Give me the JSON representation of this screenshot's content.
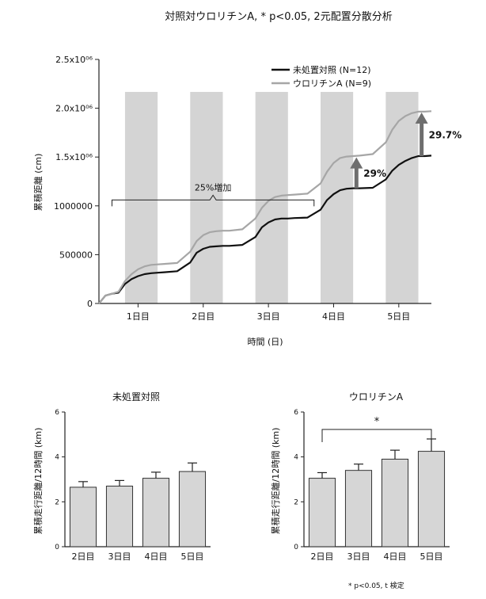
{
  "page_title": "対照対ウロリチンA, * p<0.05, 2元配置分散分析",
  "chart_data": [
    {
      "type": "line",
      "title": "対照対ウロリチンA, * p<0.05, 2元配置分散分析",
      "xlabel": "時間 (日)",
      "ylabel": "累積距離 (cm)",
      "ylim": [
        0,
        2500000
      ],
      "xlim": [
        0,
        5.1
      ],
      "y_ticks": [
        {
          "value": 0,
          "label": "0"
        },
        {
          "value": 500000,
          "label": "500000"
        },
        {
          "value": 1000000,
          "label": "1000000"
        },
        {
          "value": 1500000,
          "label": "1.5x10⁰⁶"
        },
        {
          "value": 2000000,
          "label": "2.0x10⁰⁶"
        },
        {
          "value": 2500000,
          "label": "2.5x10⁰⁶"
        }
      ],
      "x_ticks": [
        {
          "value": 0.6,
          "label": "1日目"
        },
        {
          "value": 1.6,
          "label": "2日目"
        },
        {
          "value": 2.6,
          "label": "3日目"
        },
        {
          "value": 3.6,
          "label": "4日目"
        },
        {
          "value": 4.6,
          "label": "5日目"
        }
      ],
      "dark_periods": [
        [
          0.4,
          0.9
        ],
        [
          1.4,
          1.9
        ],
        [
          2.4,
          2.9
        ],
        [
          3.4,
          3.9
        ],
        [
          4.4,
          4.9
        ]
      ],
      "legend_position": "top-right",
      "series": [
        {
          "name": "未処置対照 (N=12)",
          "color": "#111111",
          "x": [
            0,
            0.1,
            0.2,
            0.3,
            0.4,
            0.5,
            0.6,
            0.7,
            0.8,
            0.9,
            1.0,
            1.2,
            1.4,
            1.5,
            1.6,
            1.7,
            1.8,
            1.9,
            2.0,
            2.2,
            2.4,
            2.5,
            2.6,
            2.7,
            2.8,
            2.9,
            3.0,
            3.2,
            3.4,
            3.5,
            3.6,
            3.7,
            3.8,
            3.9,
            4.0,
            4.2,
            4.4,
            4.5,
            4.6,
            4.7,
            4.8,
            4.9,
            5.0,
            5.1
          ],
          "y": [
            0,
            80000,
            100000,
            110000,
            200000,
            250000,
            280000,
            300000,
            310000,
            315000,
            320000,
            330000,
            420000,
            520000,
            560000,
            580000,
            585000,
            590000,
            590000,
            600000,
            680000,
            780000,
            830000,
            860000,
            870000,
            870000,
            875000,
            880000,
            960000,
            1060000,
            1120000,
            1160000,
            1175000,
            1180000,
            1180000,
            1185000,
            1270000,
            1360000,
            1420000,
            1460000,
            1490000,
            1510000,
            1510000,
            1515000
          ]
        },
        {
          "name": "ウロリチンA (N=9)",
          "color": "#a6a6a6",
          "x": [
            0,
            0.1,
            0.2,
            0.3,
            0.4,
            0.5,
            0.6,
            0.7,
            0.8,
            0.9,
            1.0,
            1.2,
            1.4,
            1.5,
            1.6,
            1.7,
            1.8,
            1.9,
            2.0,
            2.2,
            2.4,
            2.5,
            2.6,
            2.7,
            2.8,
            2.9,
            3.0,
            3.2,
            3.4,
            3.5,
            3.6,
            3.7,
            3.8,
            3.9,
            4.0,
            4.2,
            4.4,
            4.5,
            4.6,
            4.7,
            4.8,
            4.9,
            5.0,
            5.1
          ],
          "y": [
            0,
            80000,
            100000,
            120000,
            230000,
            300000,
            350000,
            380000,
            395000,
            400000,
            405000,
            415000,
            530000,
            640000,
            700000,
            730000,
            740000,
            745000,
            745000,
            760000,
            870000,
            980000,
            1050000,
            1090000,
            1105000,
            1110000,
            1115000,
            1125000,
            1230000,
            1350000,
            1440000,
            1490000,
            1505000,
            1510000,
            1515000,
            1530000,
            1650000,
            1780000,
            1870000,
            1920000,
            1950000,
            1965000,
            1965000,
            1970000
          ]
        }
      ],
      "annotations": [
        {
          "text": "25%増加",
          "x_from": 0.2,
          "x_to": 3.3,
          "y": 1060000
        },
        {
          "text": "29%",
          "x": 3.95,
          "y_from": 1180000,
          "y_to": 1480000
        },
        {
          "text": "29.7%",
          "x": 4.95,
          "y_from": 1510000,
          "y_to": 1940000
        }
      ]
    },
    {
      "type": "bar",
      "title": "未処置対照",
      "ylabel": "累積走行距離/12時間 (km)",
      "ylim": [
        0,
        6
      ],
      "y_ticks": [
        0,
        2,
        4,
        6
      ],
      "categories": [
        "2日目",
        "3日目",
        "4日目",
        "5日目"
      ],
      "values": [
        2.65,
        2.7,
        3.05,
        3.35
      ],
      "errors": [
        0.25,
        0.25,
        0.27,
        0.38
      ]
    },
    {
      "type": "bar",
      "title": "ウロリチンA",
      "ylabel": "累積走行距離/12時間 (km)",
      "ylim": [
        0,
        6
      ],
      "y_ticks": [
        0,
        2,
        4,
        6
      ],
      "categories": [
        "2日目",
        "3日目",
        "4日目",
        "5日目"
      ],
      "values": [
        3.05,
        3.4,
        3.9,
        4.25
      ],
      "errors": [
        0.25,
        0.28,
        0.4,
        0.55
      ],
      "significance": {
        "from": 0,
        "to": 3,
        "label": "*"
      },
      "footnote": "* p<0.05, t 検定"
    }
  ]
}
